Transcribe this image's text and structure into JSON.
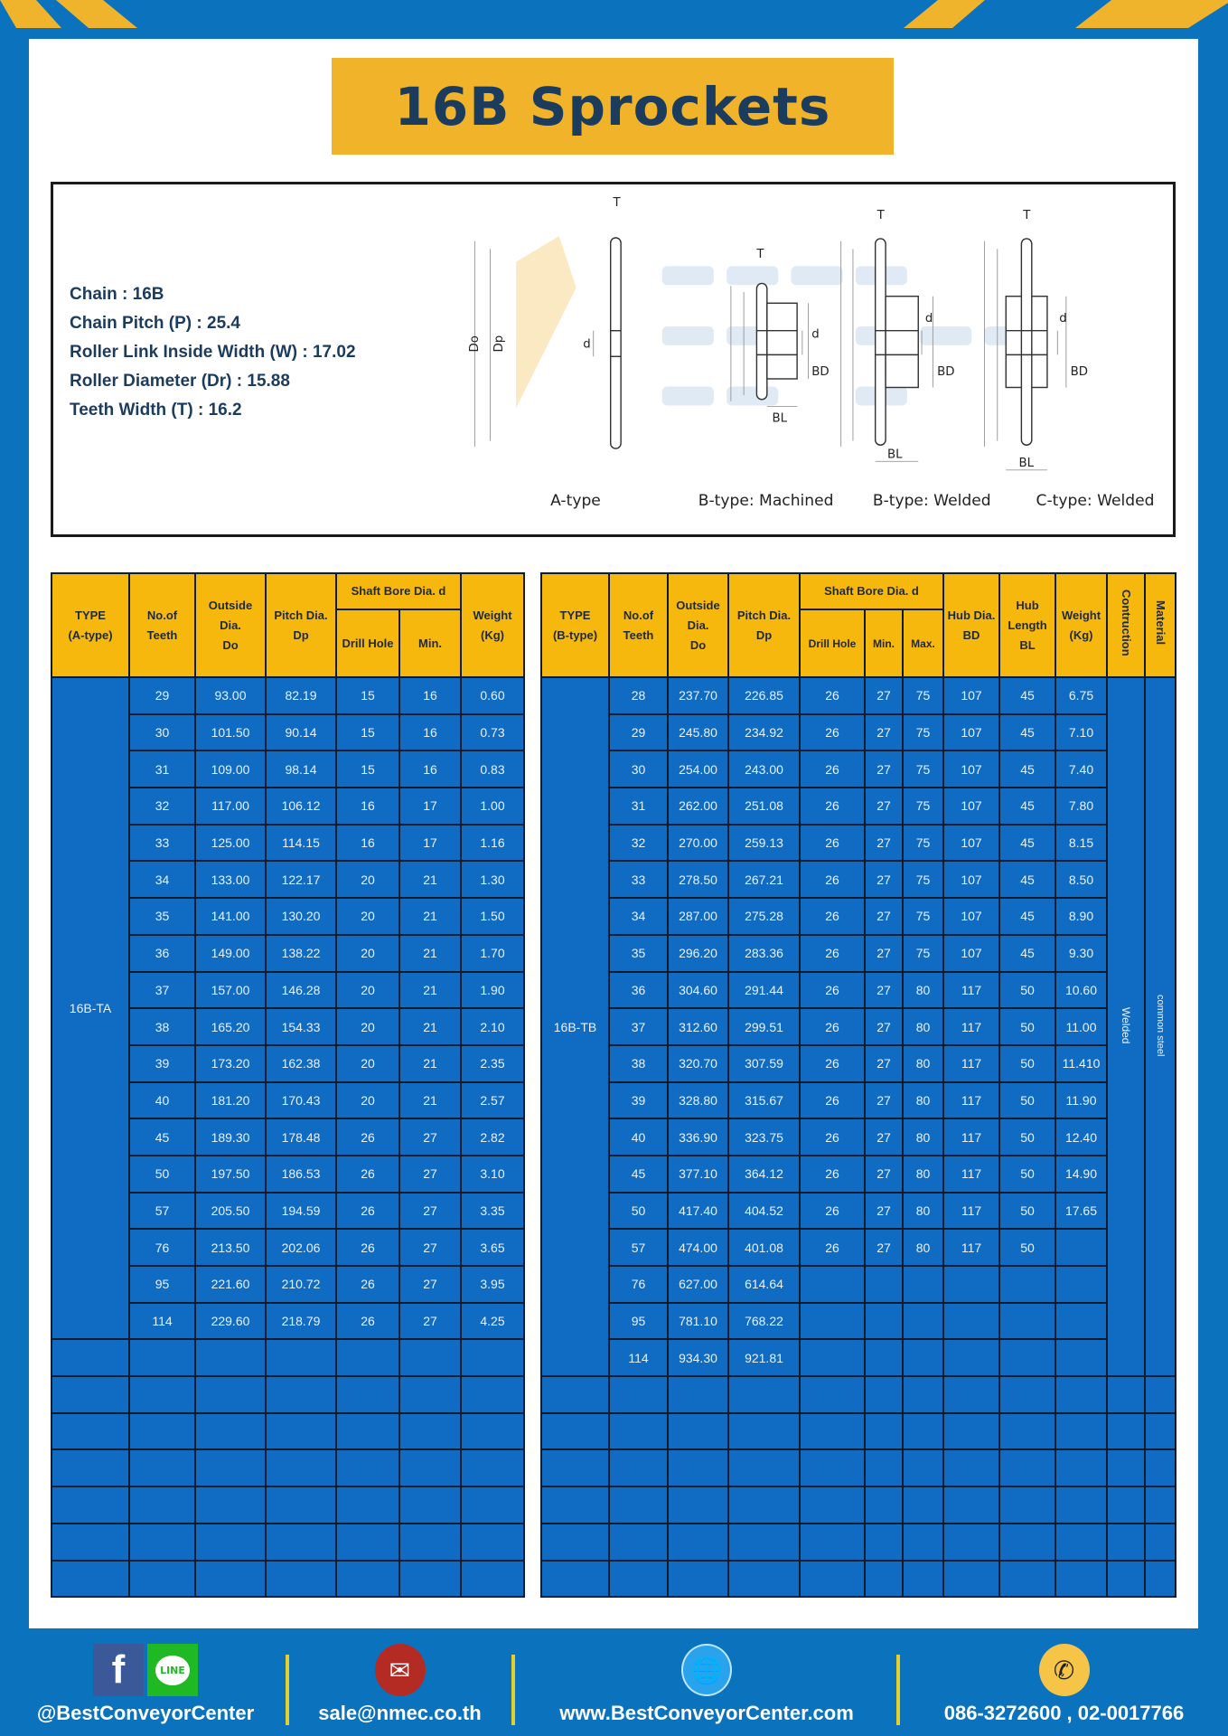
{
  "title": "16B Sprockets",
  "colors": {
    "background": "#0b73bd",
    "accent_yellow": "#f0b32a",
    "table_blue": "#0f6cc2",
    "title_text": "#1c3c5e"
  },
  "specs": [
    {
      "label": "Chain",
      "value": "16B"
    },
    {
      "label": "Chain Pitch (P)",
      "value": "25.4"
    },
    {
      "label": "Roller Link Inside Width (W)",
      "value": "17.02"
    },
    {
      "label": "Roller Diameter (Dr)",
      "value": "15.88"
    },
    {
      "label": "Teeth Width (T)",
      "value": "16.2"
    }
  ],
  "diagram": {
    "labels": {
      "T": "T",
      "Do": "Do",
      "Dp": "Dp",
      "d": "d",
      "BD": "BD",
      "BL": "BL"
    },
    "captions": [
      "A-type",
      "B-type: Machined",
      "B-type: Welded",
      "C-type: Welded"
    ],
    "watermark": "BEST CONVEYOR CENTER"
  },
  "table_a": {
    "headers": {
      "type": [
        "TYPE",
        "(A-type)"
      ],
      "teeth": [
        "No.of",
        "Teeth"
      ],
      "outside": [
        "Outside",
        "Dia.",
        "Do"
      ],
      "pitch": [
        "Pitch Dia.",
        "Dp"
      ],
      "bore": "Shaft Bore Dia. d",
      "drill": "Drill Hole",
      "min": "Min.",
      "weight": [
        "Weight",
        "(Kg)"
      ]
    },
    "type_label": "16B-TA",
    "rows": [
      [
        "29",
        "93.00",
        "82.19",
        "15",
        "16",
        "0.60"
      ],
      [
        "30",
        "101.50",
        "90.14",
        "15",
        "16",
        "0.73"
      ],
      [
        "31",
        "109.00",
        "98.14",
        "15",
        "16",
        "0.83"
      ],
      [
        "32",
        "117.00",
        "106.12",
        "16",
        "17",
        "1.00"
      ],
      [
        "33",
        "125.00",
        "114.15",
        "16",
        "17",
        "1.16"
      ],
      [
        "34",
        "133.00",
        "122.17",
        "20",
        "21",
        "1.30"
      ],
      [
        "35",
        "141.00",
        "130.20",
        "20",
        "21",
        "1.50"
      ],
      [
        "36",
        "149.00",
        "138.22",
        "20",
        "21",
        "1.70"
      ],
      [
        "37",
        "157.00",
        "146.28",
        "20",
        "21",
        "1.90"
      ],
      [
        "38",
        "165.20",
        "154.33",
        "20",
        "21",
        "2.10"
      ],
      [
        "39",
        "173.20",
        "162.38",
        "20",
        "21",
        "2.35"
      ],
      [
        "40",
        "181.20",
        "170.43",
        "20",
        "21",
        "2.57"
      ],
      [
        "45",
        "189.30",
        "178.48",
        "26",
        "27",
        "2.82"
      ],
      [
        "50",
        "197.50",
        "186.53",
        "26",
        "27",
        "3.10"
      ],
      [
        "57",
        "205.50",
        "194.59",
        "26",
        "27",
        "3.35"
      ],
      [
        "76",
        "213.50",
        "202.06",
        "26",
        "27",
        "3.65"
      ],
      [
        "95",
        "221.60",
        "210.72",
        "26",
        "27",
        "3.95"
      ],
      [
        "114",
        "229.60",
        "218.79",
        "26",
        "27",
        "4.25"
      ]
    ]
  },
  "table_b": {
    "headers": {
      "type": [
        "TYPE",
        "(B-type)"
      ],
      "teeth": [
        "No.of",
        "Teeth"
      ],
      "outside": [
        "Outside",
        "Dia.",
        "Do"
      ],
      "pitch": [
        "Pitch Dia.",
        "Dp"
      ],
      "bore": "Shaft Bore Dia. d",
      "drill": "Drill Hole",
      "min": "Min.",
      "max": "Max.",
      "hub_dia": [
        "Hub Dia.",
        "BD"
      ],
      "hub_len": [
        "Hub",
        "Length",
        "BL"
      ],
      "weight": [
        "Weight",
        "(Kg)"
      ],
      "construction": "Contruction",
      "material": "Material"
    },
    "type_label": "16B-TB",
    "construction_value": "Welded",
    "material_value": "common steel",
    "rows": [
      [
        "28",
        "237.70",
        "226.85",
        "26",
        "27",
        "75",
        "107",
        "45",
        "6.75"
      ],
      [
        "29",
        "245.80",
        "234.92",
        "26",
        "27",
        "75",
        "107",
        "45",
        "7.10"
      ],
      [
        "30",
        "254.00",
        "243.00",
        "26",
        "27",
        "75",
        "107",
        "45",
        "7.40"
      ],
      [
        "31",
        "262.00",
        "251.08",
        "26",
        "27",
        "75",
        "107",
        "45",
        "7.80"
      ],
      [
        "32",
        "270.00",
        "259.13",
        "26",
        "27",
        "75",
        "107",
        "45",
        "8.15"
      ],
      [
        "33",
        "278.50",
        "267.21",
        "26",
        "27",
        "75",
        "107",
        "45",
        "8.50"
      ],
      [
        "34",
        "287.00",
        "275.28",
        "26",
        "27",
        "75",
        "107",
        "45",
        "8.90"
      ],
      [
        "35",
        "296.20",
        "283.36",
        "26",
        "27",
        "75",
        "107",
        "45",
        "9.30"
      ],
      [
        "36",
        "304.60",
        "291.44",
        "26",
        "27",
        "80",
        "117",
        "50",
        "10.60"
      ],
      [
        "37",
        "312.60",
        "299.51",
        "26",
        "27",
        "80",
        "117",
        "50",
        "11.00"
      ],
      [
        "38",
        "320.70",
        "307.59",
        "26",
        "27",
        "80",
        "117",
        "50",
        "11.410"
      ],
      [
        "39",
        "328.80",
        "315.67",
        "26",
        "27",
        "80",
        "117",
        "50",
        "11.90"
      ],
      [
        "40",
        "336.90",
        "323.75",
        "26",
        "27",
        "80",
        "117",
        "50",
        "12.40"
      ],
      [
        "45",
        "377.10",
        "364.12",
        "26",
        "27",
        "80",
        "117",
        "50",
        "14.90"
      ],
      [
        "50",
        "417.40",
        "404.52",
        "26",
        "27",
        "80",
        "117",
        "50",
        "17.65"
      ],
      [
        "57",
        "474.00",
        "401.08",
        "26",
        "27",
        "80",
        "117",
        "50",
        ""
      ],
      [
        "76",
        "627.00",
        "614.64",
        "",
        "",
        "",
        "",
        "",
        ""
      ],
      [
        "95",
        "781.10",
        "768.22",
        "",
        "",
        "",
        "",
        "",
        ""
      ],
      [
        "114",
        "934.30",
        "921.81",
        "",
        "",
        "",
        "",
        "",
        ""
      ]
    ]
  },
  "footer": {
    "social": "@BestConveyorCenter",
    "line_icon_text": "LINE",
    "email": "sale@nmec.co.th",
    "website": "www.BestConveyorCenter.com",
    "phone": "086-3272600 , 02-0017766"
  }
}
